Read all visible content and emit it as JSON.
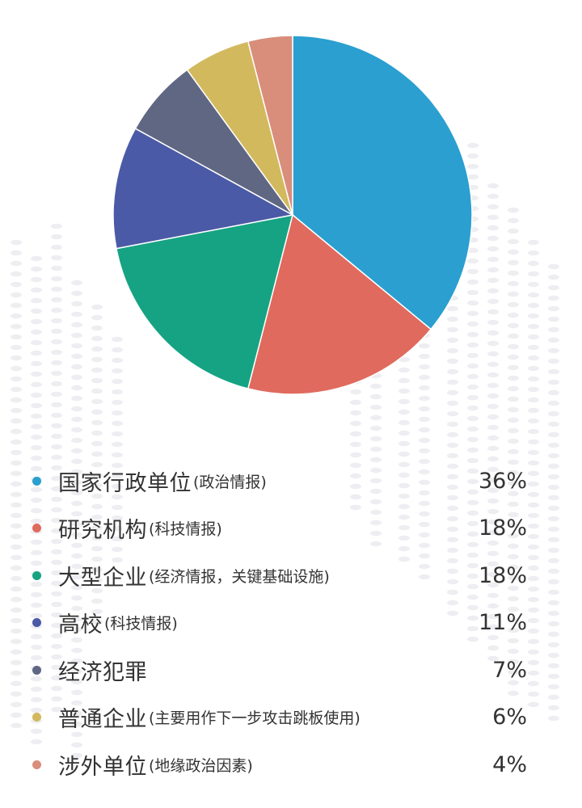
{
  "chart_data": {
    "type": "pie",
    "slices": [
      {
        "label": "国家行政单位",
        "note": "(政治情报)",
        "value": 36,
        "value_label": "36%",
        "color": "#2a9fd0"
      },
      {
        "label": "研究机构",
        "note": "(科技情报)",
        "value": 18,
        "value_label": "18%",
        "color": "#e06a5e"
      },
      {
        "label": "大型企业",
        "note": "(经济情报，关键基础设施)",
        "value": 18,
        "value_label": "18%",
        "color": "#16a383"
      },
      {
        "label": "高校",
        "note": "(科技情报)",
        "value": 11,
        "value_label": "11%",
        "color": "#4b5aa6"
      },
      {
        "label": "经济犯罪",
        "note": "",
        "value": 7,
        "value_label": "7%",
        "color": "#5f6783"
      },
      {
        "label": "普通企业",
        "note": "(主要用作下一步攻击跳板使用)",
        "value": 6,
        "value_label": "6%",
        "color": "#d3b95e"
      },
      {
        "label": "涉外单位",
        "note": "(地缘政治因素)",
        "value": 4,
        "value_label": "4%",
        "color": "#d98d7b"
      }
    ],
    "legend_position": "bottom"
  }
}
